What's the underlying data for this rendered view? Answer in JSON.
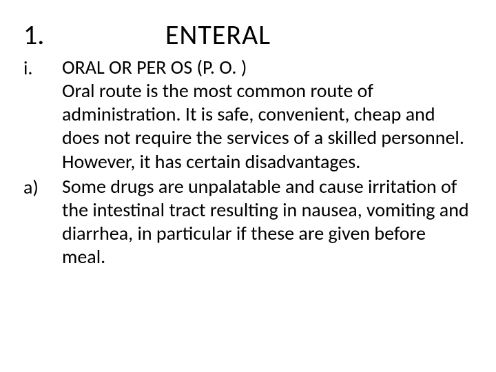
{
  "header": {
    "number": "1.",
    "title": "ENTERAL"
  },
  "items": [
    {
      "marker": "i.",
      "text": "ORAL OR PER OS (P. O. )\nOral route is the most common route of administration.  It is safe, convenient, cheap and does not require the services of a skilled personnel.  However, it has certain disadvantages."
    },
    {
      "marker": "a)",
      "text": "Some drugs are unpalatable and cause irritation of the intestinal tract resulting in nausea, vomiting and diarrhea, in particular if these are given before meal."
    }
  ],
  "style": {
    "background_color": "#ffffff",
    "text_color": "#000000",
    "title_fontsize": 40,
    "body_fontsize": 28,
    "font_family": "Calibri"
  }
}
